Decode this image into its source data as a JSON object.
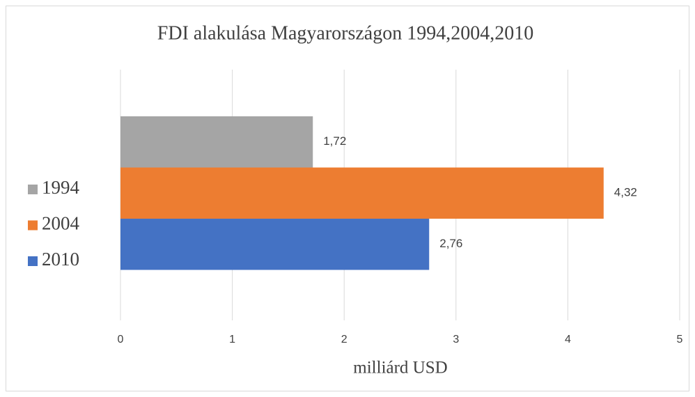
{
  "chart_data": {
    "type": "bar",
    "orientation": "horizontal",
    "title": "FDI alakulása Magyarországon 1994,2004,2010",
    "x_label": "milliárd USD",
    "series": [
      {
        "name": "1994",
        "color": "#a5a5a5",
        "values": [
          1.72
        ],
        "value_labels": [
          "1,72"
        ]
      },
      {
        "name": "2004",
        "color": "#ed7d31",
        "values": [
          4.32
        ],
        "value_labels": [
          "4,32"
        ]
      },
      {
        "name": "2010",
        "color": "#4472c4",
        "values": [
          2.76
        ],
        "value_labels": [
          "2,76"
        ]
      }
    ],
    "xlim": [
      0,
      5
    ],
    "xticks": [
      0,
      1,
      2,
      3,
      4,
      5
    ],
    "grid": true,
    "legend": "left"
  }
}
